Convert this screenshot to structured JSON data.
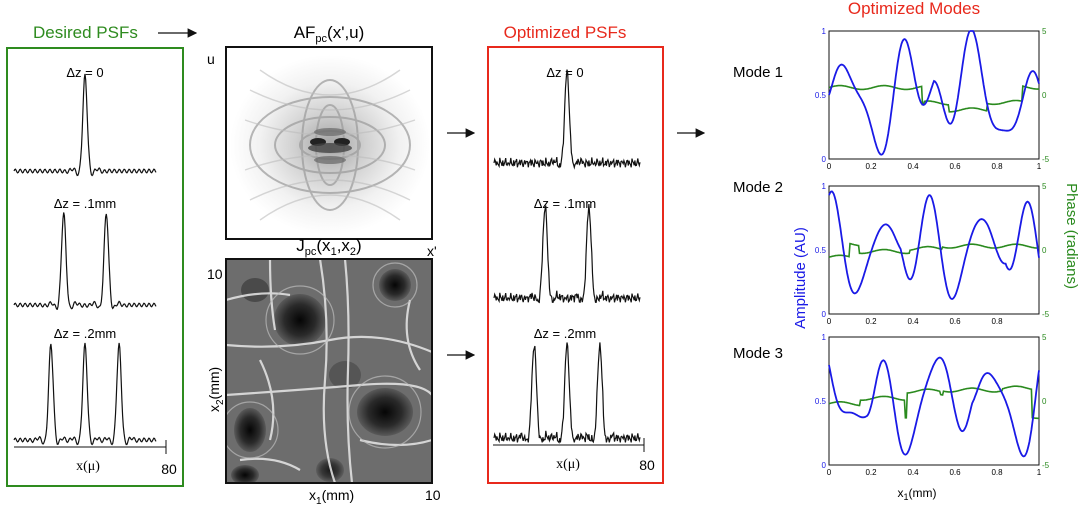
{
  "desired": {
    "title": "Desired PSFs",
    "color": "#2e8b1f",
    "panels": [
      {
        "label": "Δz = 0",
        "peaks": [
          0
        ]
      },
      {
        "label": "Δz = .1mm",
        "peaks": [
          -0.3,
          0.3
        ]
      },
      {
        "label": "Δz = .2mm",
        "peaks": [
          -0.48,
          0,
          0.48
        ]
      }
    ],
    "xaxis_label": "x(μ)",
    "xaxis_max": "80"
  },
  "af": {
    "title_main": "AF",
    "title_sub": "pc",
    "title_args": "(x',u)",
    "ylabel": "u",
    "xlabel": "x'"
  },
  "j": {
    "title_main": "J",
    "title_sub": "pc",
    "title_args": "(x",
    "title_sub1": "1",
    "title_mid": ",x",
    "title_sub2": "2",
    "title_end": ")",
    "ytick": "10",
    "ylabel_main": "x",
    "ylabel_sub": "2",
    "ylabel_unit": "(mm)",
    "xlabel_main": "x",
    "xlabel_sub": "1",
    "xlabel_unit": "(mm)",
    "xtick": "10"
  },
  "optimized": {
    "title": "Optimized PSFs",
    "color": "#e8291c",
    "panels": [
      {
        "label": "Δz = 0",
        "peaks": [
          0
        ]
      },
      {
        "label": "Δz = .1mm",
        "peaks": [
          -0.3,
          0.3
        ]
      },
      {
        "label": "Δz = .2mm",
        "peaks": [
          -0.45,
          0,
          0.45
        ]
      }
    ],
    "xaxis_label": "x(μ)",
    "xaxis_max": "80"
  },
  "modes": {
    "title": "Optimized Modes",
    "title_color": "#e8291c",
    "amp_color": "#1a1ae6",
    "phase_color": "#2a8a1e",
    "amp_axis_label": "Amplitude (AU)",
    "phase_axis_label": "Phase (radians)",
    "xlabel_main": "x",
    "xlabel_sub": "1",
    "xlabel_unit": "(mm)",
    "modes": [
      {
        "name": "Mode 1",
        "left_ticks": [
          "1",
          "0.5",
          "0"
        ],
        "right_ticks": [
          "5",
          "0",
          "-5"
        ],
        "x_ticks": [
          "0",
          "0.2",
          "0.4",
          "0.6",
          "0.8",
          "1"
        ]
      },
      {
        "name": "Mode 2",
        "left_ticks": [
          "1",
          "0.5",
          "0"
        ],
        "right_ticks": [
          "5",
          "0",
          "-5"
        ],
        "x_ticks": [
          "0",
          "0.2",
          "0.4",
          "0.6",
          "0.8"
        ]
      },
      {
        "name": "Mode 3",
        "left_ticks": [
          "1",
          "0.5",
          "0"
        ],
        "right_ticks": [
          "5",
          "0",
          "-5"
        ],
        "x_ticks": [
          "0",
          "0.2",
          "0.4",
          "0.6",
          "0.8",
          "1"
        ]
      }
    ]
  }
}
